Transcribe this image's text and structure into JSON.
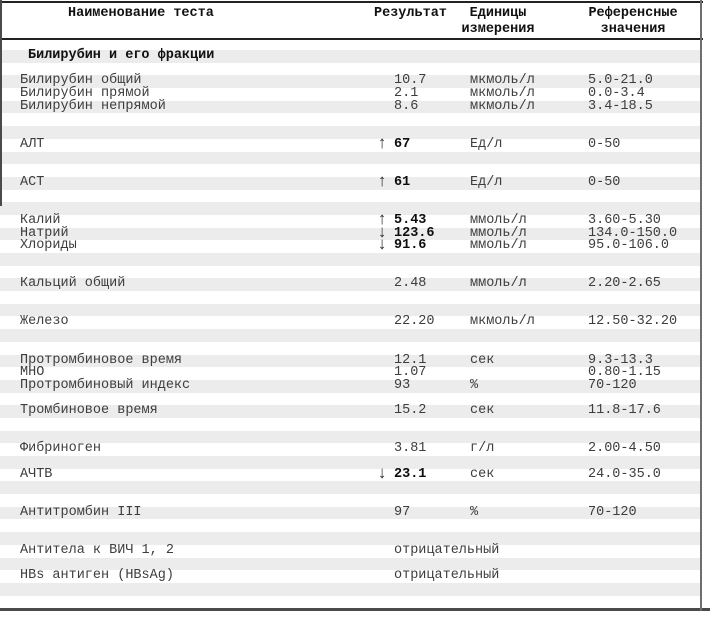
{
  "header": {
    "col_name": "Наименование теста",
    "col_result": "Результат",
    "col_units_line1": "Единицы",
    "col_units_line2": "измерения",
    "col_ref_line1": "Референсные",
    "col_ref_line2": "значения"
  },
  "icons": {
    "up": "↑",
    "down": "↓"
  },
  "colors": {
    "stripe": "#ececec",
    "text": "#3d3d3d",
    "bold_text": "#0d0d0d",
    "border_dark": "#222222",
    "border_mid": "#4a4a4a",
    "border_gray": "#6e6e6e"
  },
  "rows": [
    {
      "type": "section",
      "name": "Билирубин и его фракции"
    },
    {
      "type": "empty"
    },
    {
      "type": "data",
      "name": "Билирубин общий",
      "arrow": "",
      "bold": false,
      "result": "10.7",
      "units": "мкмоль/л",
      "ref": "5.0-21.0"
    },
    {
      "type": "data",
      "name": "Билирубин прямой",
      "arrow": "",
      "bold": false,
      "result": "2.1",
      "units": "мкмоль/л",
      "ref": "0.0-3.4"
    },
    {
      "type": "data",
      "name": "Билирубин непрямой",
      "arrow": "",
      "bold": false,
      "result": "8.6",
      "units": "мкмоль/л",
      "ref": "3.4-18.5"
    },
    {
      "type": "empty"
    },
    {
      "type": "empty"
    },
    {
      "type": "data",
      "name": "АЛТ",
      "arrow": "up",
      "bold": true,
      "result": "67",
      "units": "Ед/л",
      "ref": "0-50"
    },
    {
      "type": "empty"
    },
    {
      "type": "empty"
    },
    {
      "type": "data",
      "name": "АСТ",
      "arrow": "up",
      "bold": true,
      "result": "61",
      "units": "Ед/л",
      "ref": "0-50"
    },
    {
      "type": "empty"
    },
    {
      "type": "empty"
    },
    {
      "type": "data",
      "name": "Калий",
      "arrow": "up",
      "bold": true,
      "result": "5.43",
      "units": "ммоль/л",
      "ref": "3.60-5.30"
    },
    {
      "type": "data",
      "name": "Натрий",
      "arrow": "down",
      "bold": true,
      "result": "123.6",
      "units": "ммоль/л",
      "ref": "134.0-150.0"
    },
    {
      "type": "data",
      "name": "Хлориды",
      "arrow": "down",
      "bold": true,
      "result": "91.6",
      "units": "ммоль/л",
      "ref": "95.0-106.0"
    },
    {
      "type": "empty"
    },
    {
      "type": "empty"
    },
    {
      "type": "data",
      "name": "Кальций общий",
      "arrow": "",
      "bold": false,
      "result": "2.48",
      "units": "ммоль/л",
      "ref": "2.20-2.65"
    },
    {
      "type": "empty"
    },
    {
      "type": "empty"
    },
    {
      "type": "data",
      "name": "Железо",
      "arrow": "",
      "bold": false,
      "result": "22.20",
      "units": "мкмоль/л",
      "ref": "12.50-32.20"
    },
    {
      "type": "empty"
    },
    {
      "type": "empty"
    },
    {
      "type": "data",
      "name": "Протромбиновое время",
      "arrow": "",
      "bold": false,
      "result": "12.1",
      "units": "сек",
      "ref": "9.3-13.3"
    },
    {
      "type": "data",
      "name": "МНО",
      "arrow": "",
      "bold": false,
      "result": "1.07",
      "units": "",
      "ref": "0.80-1.15"
    },
    {
      "type": "data",
      "name": "Протромбиновый индекс",
      "arrow": "",
      "bold": false,
      "result": "93",
      "units": "%",
      "ref": "70-120"
    },
    {
      "type": "empty"
    },
    {
      "type": "data",
      "name": "Тромбиновое время",
      "arrow": "",
      "bold": false,
      "result": "15.2",
      "units": "сек",
      "ref": "11.8-17.6"
    },
    {
      "type": "empty"
    },
    {
      "type": "empty"
    },
    {
      "type": "data",
      "name": "Фибриноген",
      "arrow": "",
      "bold": false,
      "result": "3.81",
      "units": "г/л",
      "ref": "2.00-4.50"
    },
    {
      "type": "empty"
    },
    {
      "type": "data",
      "name": "АЧТВ",
      "arrow": "down",
      "bold": true,
      "result": "23.1",
      "units": "сек",
      "ref": "24.0-35.0"
    },
    {
      "type": "empty"
    },
    {
      "type": "empty"
    },
    {
      "type": "data",
      "name": "Антитромбин III",
      "arrow": "",
      "bold": false,
      "result": "97",
      "units": "%",
      "ref": "70-120"
    },
    {
      "type": "empty"
    },
    {
      "type": "empty"
    },
    {
      "type": "data",
      "name": "Антитела к ВИЧ 1, 2",
      "arrow": "",
      "bold": false,
      "result": "отрицательный",
      "units": "",
      "ref": ""
    },
    {
      "type": "empty"
    },
    {
      "type": "data",
      "name": "HBs антиген (HBsAg)",
      "arrow": "",
      "bold": false,
      "result": "отрицательный",
      "units": "",
      "ref": ""
    },
    {
      "type": "empty"
    },
    {
      "type": "empty"
    }
  ]
}
